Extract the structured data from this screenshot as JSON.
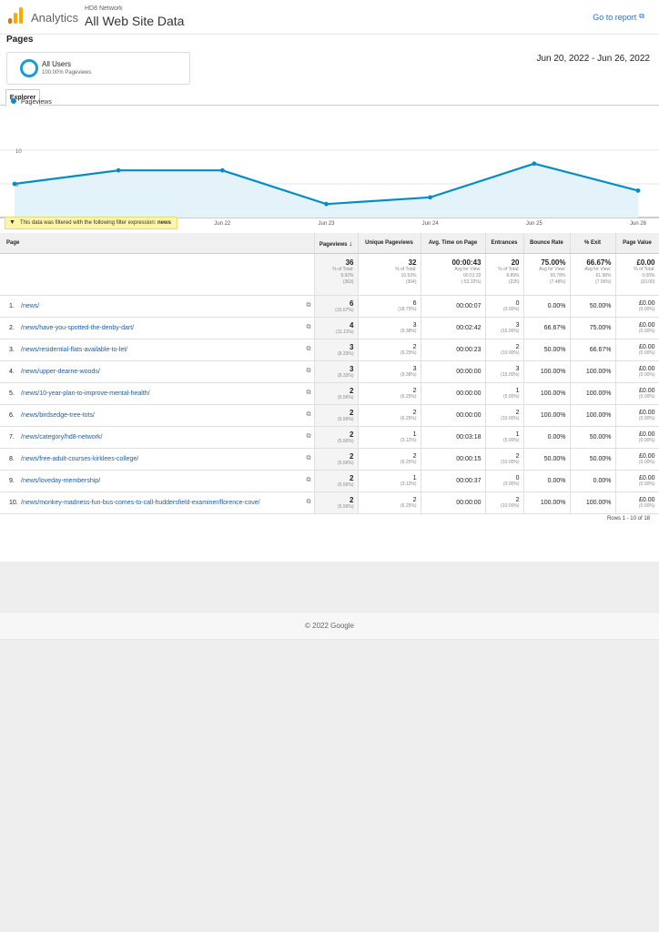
{
  "header": {
    "brand": "Analytics",
    "account": "HD8 Network",
    "view": "All Web Site Data",
    "goto_report": "Go to report",
    "logo_colors": [
      "#f9ab00",
      "#e37400",
      "#e37400"
    ]
  },
  "page_title": "Pages",
  "segment": {
    "name": "All Users",
    "sub": "100.00% Pageviews"
  },
  "date_range": "Jun 20, 2022 - Jun 26, 2022",
  "tab": "Explorer",
  "chart_data": {
    "type": "line",
    "series": [
      {
        "name": "Pageviews",
        "values": [
          5,
          7,
          7,
          2,
          3,
          8,
          4
        ]
      }
    ],
    "x": [
      "Jun 20",
      "Jun 21",
      "Jun 22",
      "Jun 23",
      "Jun 24",
      "Jun 25",
      "Jun 26"
    ],
    "x_tick_labels": [
      "...",
      "Jun 21",
      "Jun 22",
      "Jun 23",
      "Jun 24",
      "Jun 25",
      "Jun 26"
    ],
    "y_ticks": [
      "10",
      "5"
    ],
    "ylim": [
      0,
      10
    ],
    "color": "#058dc7",
    "fill": "#e4f2fa",
    "legend": "top-left",
    "grid": true
  },
  "filter": {
    "text": "This data was filtered with the following filter expression:",
    "expression": "news"
  },
  "table": {
    "headers": {
      "page": "Page",
      "pageviews": "Pageviews",
      "sort_icon": "↓",
      "unique": "Unique Pageviews",
      "avg_time": "Avg. Time on Page",
      "entrances": "Entrances",
      "bounce": "Bounce Rate",
      "exit": "% Exit",
      "value": "Page Value"
    },
    "totals": {
      "pageviews": {
        "value": "36",
        "l1": "% of Total:",
        "l2": "9.92%",
        "l3": "(363)"
      },
      "unique": {
        "value": "32",
        "l1": "% of Total:",
        "l2": "10.53%",
        "l3": "(304)"
      },
      "avg_time": {
        "value": "00:00:43",
        "l1": "Avg for View:",
        "l2": "00:01:32",
        "l3": "(-53.32%)"
      },
      "entrances": {
        "value": "20",
        "l1": "% of Total:",
        "l2": "8.89%",
        "l3": "(225)"
      },
      "bounce": {
        "value": "75.00%",
        "l1": "Avg for View:",
        "l2": "69.78%",
        "l3": "(7.48%)"
      },
      "exit": {
        "value": "66.67%",
        "l1": "Avg for View:",
        "l2": "61.98%",
        "l3": "(7.56%)"
      },
      "value": {
        "value": "£0.00",
        "l1": "% of Total:",
        "l2": "0.00%",
        "l3": "(£0.00)"
      }
    },
    "rows": [
      {
        "idx": "1.",
        "page": "/news/",
        "pv": "6",
        "pv_pct": "(16.67%)",
        "upv": "6",
        "upv_pct": "(18.75%)",
        "time": "00:00:07",
        "ent": "0",
        "ent_pct": "(0.00%)",
        "bounce": "0.00%",
        "exit": "50.00%",
        "val": "£0.00",
        "val_pct": "(0.00%)"
      },
      {
        "idx": "2.",
        "page": "/news/have-you-spotted-the-denby-dart/",
        "pv": "4",
        "pv_pct": "(11.11%)",
        "upv": "3",
        "upv_pct": "(9.38%)",
        "time": "00:02:42",
        "ent": "3",
        "ent_pct": "(15.00%)",
        "bounce": "66.67%",
        "exit": "75.00%",
        "val": "£0.00",
        "val_pct": "(0.00%)"
      },
      {
        "idx": "3.",
        "page": "/news/residential-flats-available-to-let/",
        "pv": "3",
        "pv_pct": "(8.33%)",
        "upv": "2",
        "upv_pct": "(6.25%)",
        "time": "00:00:23",
        "ent": "2",
        "ent_pct": "(10.00%)",
        "bounce": "50.00%",
        "exit": "66.67%",
        "val": "£0.00",
        "val_pct": "(0.00%)"
      },
      {
        "idx": "4.",
        "page": "/news/upper-dearne-woods/",
        "pv": "3",
        "pv_pct": "(8.33%)",
        "upv": "3",
        "upv_pct": "(9.38%)",
        "time": "00:00:00",
        "ent": "3",
        "ent_pct": "(15.00%)",
        "bounce": "100.00%",
        "exit": "100.00%",
        "val": "£0.00",
        "val_pct": "(0.00%)"
      },
      {
        "idx": "5.",
        "page": "/news/10-year-plan-to-improve-mental-health/",
        "pv": "2",
        "pv_pct": "(5.56%)",
        "upv": "2",
        "upv_pct": "(6.25%)",
        "time": "00:00:00",
        "ent": "1",
        "ent_pct": "(5.00%)",
        "bounce": "100.00%",
        "exit": "100.00%",
        "val": "£0.00",
        "val_pct": "(0.00%)"
      },
      {
        "idx": "6.",
        "page": "/news/birdsedge-tree-tots/",
        "pv": "2",
        "pv_pct": "(5.56%)",
        "upv": "2",
        "upv_pct": "(6.25%)",
        "time": "00:00:00",
        "ent": "2",
        "ent_pct": "(10.00%)",
        "bounce": "100.00%",
        "exit": "100.00%",
        "val": "£0.00",
        "val_pct": "(0.00%)"
      },
      {
        "idx": "7.",
        "page": "/news/category/hd8-network/",
        "pv": "2",
        "pv_pct": "(5.56%)",
        "upv": "1",
        "upv_pct": "(3.12%)",
        "time": "00:03:18",
        "ent": "1",
        "ent_pct": "(5.00%)",
        "bounce": "0.00%",
        "exit": "50.00%",
        "val": "£0.00",
        "val_pct": "(0.00%)"
      },
      {
        "idx": "8.",
        "page": "/news/free-adult-courses-kirklees-college/",
        "pv": "2",
        "pv_pct": "(5.56%)",
        "upv": "2",
        "upv_pct": "(6.25%)",
        "time": "00:00:15",
        "ent": "2",
        "ent_pct": "(10.00%)",
        "bounce": "50.00%",
        "exit": "50.00%",
        "val": "£0.00",
        "val_pct": "(0.00%)"
      },
      {
        "idx": "9.",
        "page": "/news/loveday-membership/",
        "pv": "2",
        "pv_pct": "(5.56%)",
        "upv": "1",
        "upv_pct": "(3.12%)",
        "time": "00:00:37",
        "ent": "0",
        "ent_pct": "(0.00%)",
        "bounce": "0.00%",
        "exit": "0.00%",
        "val": "£0.00",
        "val_pct": "(0.00%)"
      },
      {
        "idx": "10.",
        "page": "/news/monkey-madness-fun-bus-comes-to-call-huddersfield-examiner/florence-cove/",
        "pv": "2",
        "pv_pct": "(5.56%)",
        "upv": "2",
        "upv_pct": "(6.25%)",
        "time": "00:00:00",
        "ent": "2",
        "ent_pct": "(10.00%)",
        "bounce": "100.00%",
        "exit": "100.00%",
        "val": "£0.00",
        "val_pct": "(0.00%)"
      }
    ]
  },
  "rows_info": "Rows 1 - 10 of 18",
  "footer": "© 2022 Google"
}
